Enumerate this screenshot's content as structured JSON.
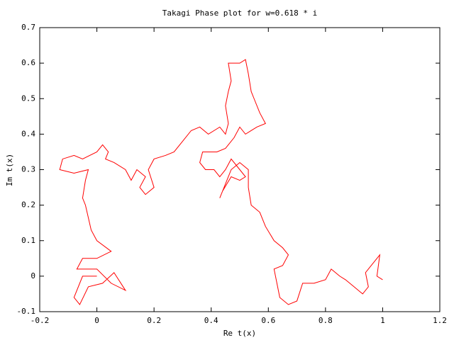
{
  "chart_data": {
    "type": "line",
    "title": "Takagi Phase plot for w=0.618 * i",
    "xlabel": "Re t(x)",
    "ylabel": "Im t(x)",
    "xlim": [
      -0.2,
      1.2
    ],
    "xticks": [
      -0.2,
      0,
      0.2,
      0.4,
      0.6,
      0.8,
      1,
      1.2
    ],
    "ylim": [
      -0.1,
      0.7
    ],
    "yticks": [
      -0.1,
      0,
      0.1,
      0.2,
      0.3,
      0.4,
      0.5,
      0.6,
      0.7
    ],
    "grid": false,
    "series": [
      {
        "color": "#ff0000",
        "x": [
          0,
          -0.05,
          -0.08,
          -0.06,
          -0.03,
          0.02,
          0.06,
          0.1,
          0.05,
          0,
          -0.07,
          -0.05,
          0,
          0.05,
          0,
          -0.02,
          -0.04,
          -0.05,
          -0.04,
          -0.03,
          -0.08,
          -0.13,
          -0.12,
          -0.08,
          -0.05,
          0,
          0.02,
          0.04,
          0.03,
          0.06,
          0.1,
          0.12,
          0.14,
          0.17,
          0.15,
          0.17,
          0.2,
          0.18,
          0.2,
          0.24,
          0.27,
          0.3,
          0.33,
          0.36,
          0.39,
          0.43,
          0.45,
          0.46,
          0.45,
          0.46,
          0.47,
          0.46,
          0.5,
          0.52,
          0.53,
          0.54,
          0.55,
          0.57,
          0.59,
          0.56,
          0.54,
          0.52,
          0.5,
          0.48,
          0.45,
          0.42,
          0.37,
          0.36,
          0.38,
          0.41,
          0.43,
          0.45,
          0.47,
          0.5,
          0.52,
          0.5,
          0.47,
          0.44,
          0.43,
          0.45,
          0.47,
          0.5,
          0.53,
          0.53,
          0.54,
          0.57,
          0.59,
          0.62,
          0.65,
          0.67,
          0.65,
          0.62,
          0.63,
          0.64,
          0.67,
          0.7,
          0.72,
          0.76,
          0.8,
          0.82,
          0.85,
          0.87,
          0.9,
          0.93,
          0.95,
          0.94,
          0.96,
          0.99,
          0.98,
          1
        ],
        "values": [
          0,
          0,
          -0.06,
          -0.08,
          -0.03,
          -0.02,
          0.01,
          -0.04,
          -0.02,
          0.02,
          0.02,
          0.05,
          0.05,
          0.07,
          0.1,
          0.13,
          0.2,
          0.22,
          0.27,
          0.3,
          0.29,
          0.3,
          0.33,
          0.34,
          0.33,
          0.35,
          0.37,
          0.35,
          0.33,
          0.32,
          0.3,
          0.27,
          0.3,
          0.28,
          0.25,
          0.23,
          0.25,
          0.3,
          0.33,
          0.34,
          0.35,
          0.38,
          0.41,
          0.42,
          0.4,
          0.42,
          0.4,
          0.43,
          0.48,
          0.52,
          0.55,
          0.6,
          0.6,
          0.61,
          0.57,
          0.52,
          0.5,
          0.46,
          0.43,
          0.42,
          0.41,
          0.4,
          0.42,
          0.39,
          0.36,
          0.35,
          0.35,
          0.32,
          0.3,
          0.3,
          0.28,
          0.3,
          0.33,
          0.3,
          0.28,
          0.27,
          0.28,
          0.24,
          0.22,
          0.26,
          0.3,
          0.32,
          0.3,
          0.25,
          0.2,
          0.18,
          0.14,
          0.1,
          0.08,
          0.06,
          0.03,
          0.02,
          -0.02,
          -0.06,
          -0.08,
          -0.07,
          -0.02,
          -0.02,
          -0.01,
          0.02,
          0,
          -0.01,
          -0.03,
          -0.05,
          -0.03,
          0.01,
          0.03,
          0.06,
          0,
          -0.01
        ]
      }
    ]
  }
}
